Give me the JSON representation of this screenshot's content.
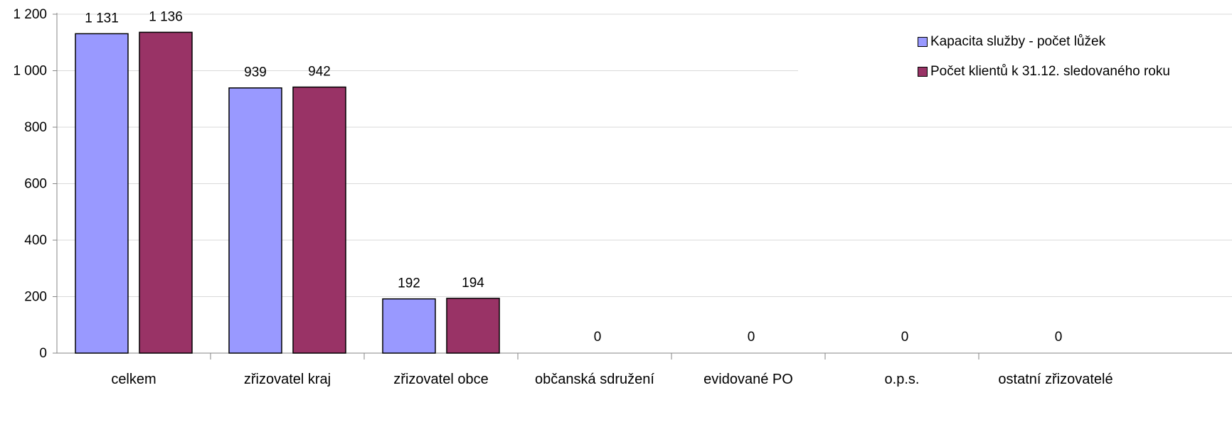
{
  "chart_data": {
    "type": "bar",
    "categories": [
      "celkem",
      "zřizovatel kraj",
      "zřizovatel obce",
      "občanská sdružení",
      "evidované PO",
      "o.p.s.",
      "ostatní zřizovatelé"
    ],
    "series": [
      {
        "name": "Kapacita služby - počet lůžek",
        "color": "#9999ff",
        "values": [
          1131,
          939,
          192,
          0,
          0,
          0,
          0
        ],
        "labels": [
          "1 131",
          "939",
          "192",
          "",
          "",
          "",
          ""
        ]
      },
      {
        "name": "Počet klientů k 31.12. sledovaného roku",
        "color": "#993366",
        "values": [
          1136,
          942,
          194,
          0,
          0,
          0,
          0
        ],
        "labels": [
          "1 136",
          "942",
          "194",
          "0",
          "0",
          "0",
          "0"
        ]
      }
    ],
    "ylim": [
      0,
      1200
    ],
    "yticks": [
      0,
      200,
      400,
      600,
      800,
      1000,
      1200
    ],
    "ytick_labels": [
      "0",
      "200",
      "400",
      "600",
      "800",
      "1 000",
      "1 200"
    ],
    "grid": true,
    "legend_position": "top-right"
  }
}
